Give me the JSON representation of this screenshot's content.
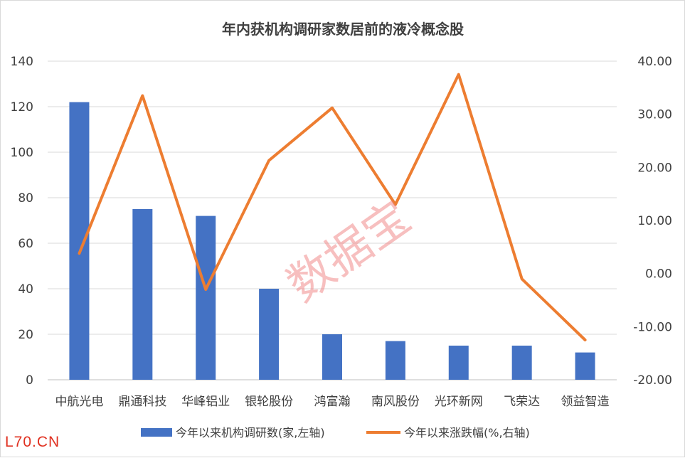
{
  "chart_data": {
    "type": "bar",
    "title": "年内获机构调研家数居前的液冷概念股",
    "categories": [
      "中航光电",
      "鼎通科技",
      "华峰铝业",
      "银轮股份",
      "鸿富瀚",
      "南风股份",
      "光环新网",
      "飞荣达",
      "领益智造"
    ],
    "series": [
      {
        "name": "今年以来机构调研数(家,左轴)",
        "type": "bar",
        "axis": "left",
        "color": "#4472c4",
        "values": [
          122,
          75,
          72,
          40,
          20,
          17,
          15,
          15,
          12
        ]
      },
      {
        "name": "今年以来涨跌幅(%,右轴)",
        "type": "line",
        "axis": "right",
        "color": "#ed7d31",
        "values": [
          3.8,
          33.5,
          -3.0,
          21.3,
          31.2,
          13.0,
          37.5,
          -1.0,
          -12.5
        ]
      }
    ],
    "left_axis": {
      "min": 0,
      "max": 140,
      "step": 20,
      "tick_labels": [
        "0",
        "20",
        "40",
        "60",
        "80",
        "100",
        "120",
        "140"
      ]
    },
    "right_axis": {
      "min": -20,
      "max": 40,
      "step": 10,
      "tick_labels": [
        "-20.00",
        "-10.00",
        "0.00",
        "10.00",
        "20.00",
        "30.00",
        "40.00"
      ]
    },
    "grid": true,
    "legend_position": "bottom"
  },
  "watermark": "数据宝",
  "brand": "L70.CN"
}
